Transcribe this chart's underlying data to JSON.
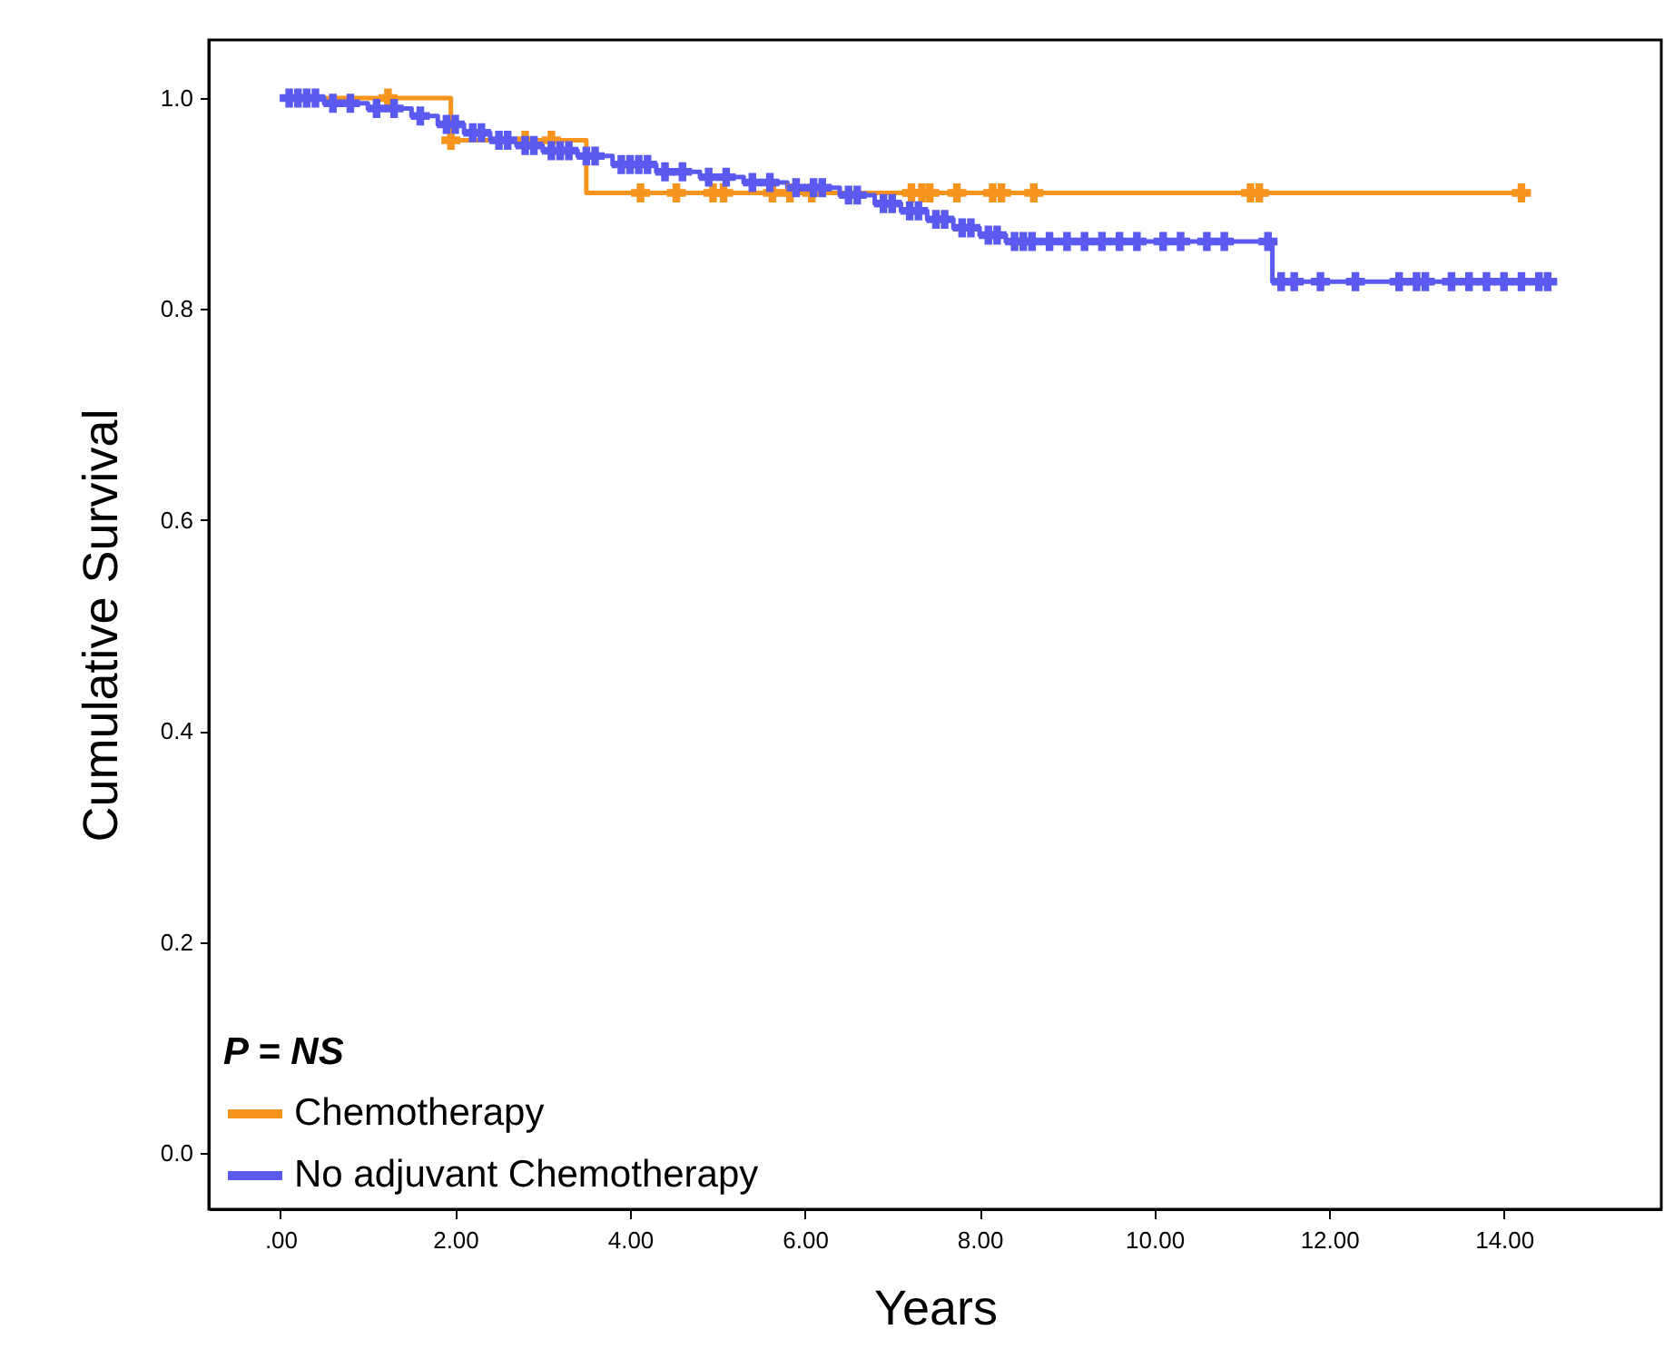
{
  "chart_data": {
    "type": "step",
    "xlabel": "Years",
    "ylabel": "Cumulative Survival",
    "legend_title": "P = NS",
    "legend": "bottom left",
    "grid": false,
    "xlim": [
      -0.82,
      15.8
    ],
    "ylim": [
      -0.053,
      1.055
    ],
    "xticks": [
      {
        "value": 0,
        "label": ".00"
      },
      {
        "value": 2,
        "label": "2.00"
      },
      {
        "value": 4,
        "label": "4.00"
      },
      {
        "value": 6,
        "label": "6.00"
      },
      {
        "value": 8,
        "label": "8.00"
      },
      {
        "value": 10,
        "label": "10.00"
      },
      {
        "value": 12,
        "label": "12.00"
      },
      {
        "value": 14,
        "label": "14.00"
      }
    ],
    "yticks": [
      {
        "value": 0,
        "label": "0.0"
      },
      0.2,
      0.4,
      0.6,
      0.8,
      {
        "value": 1,
        "label": "1.0"
      }
    ],
    "series": [
      {
        "name": "Chemotherapy",
        "color": "#f7941e",
        "x": [
          0,
          1.95,
          3.5,
          14.2
        ],
        "values": [
          1.0,
          0.96,
          0.91,
          0.91
        ]
      },
      {
        "name": "No adjuvant Chemotherapy",
        "color": "#5a5af0",
        "x": [
          0,
          0.5,
          1.0,
          1.5,
          1.8,
          2.1,
          2.4,
          2.7,
          3.0,
          3.4,
          3.8,
          4.3,
          4.8,
          5.3,
          5.8,
          6.4,
          6.8,
          7.1,
          7.4,
          7.7,
          8.0,
          8.3,
          11.35,
          14.55
        ],
        "values": [
          1.0,
          0.995,
          0.99,
          0.983,
          0.975,
          0.967,
          0.96,
          0.955,
          0.95,
          0.945,
          0.937,
          0.93,
          0.925,
          0.92,
          0.915,
          0.908,
          0.9,
          0.893,
          0.885,
          0.877,
          0.87,
          0.864,
          0.826,
          0.826
        ]
      },
      {
        "color": "#f7941e",
        "type": "scatter",
        "marker": "cross",
        "x": [
          1.23,
          1.95,
          2.8,
          3.1,
          4.12,
          4.53,
          4.95,
          5.07,
          5.63,
          5.83,
          6.08,
          7.22,
          7.34,
          7.43,
          7.74,
          8.15,
          8.25,
          8.62,
          11.1,
          11.2,
          14.2
        ],
        "values": [
          1.0,
          0.96,
          0.96,
          0.96,
          0.91,
          0.91,
          0.91,
          0.91,
          0.91,
          0.91,
          0.91,
          0.91,
          0.91,
          0.91,
          0.91,
          0.91,
          0.91,
          0.91,
          0.91,
          0.91,
          0.91
        ]
      },
      {
        "color": "#5a5af0",
        "type": "scatter",
        "marker": "cross",
        "x": [
          0.1,
          0.2,
          0.3,
          0.4,
          0.6,
          0.8,
          1.1,
          1.3,
          1.6,
          1.9,
          2.0,
          2.2,
          2.3,
          2.5,
          2.6,
          2.8,
          2.9,
          3.1,
          3.2,
          3.3,
          3.5,
          3.6,
          3.9,
          4.0,
          4.1,
          4.2,
          4.4,
          4.6,
          4.9,
          5.1,
          5.4,
          5.6,
          5.9,
          6.1,
          6.2,
          6.5,
          6.6,
          6.9,
          7.0,
          7.2,
          7.3,
          7.5,
          7.6,
          7.8,
          7.9,
          8.1,
          8.2,
          8.4,
          8.5,
          8.6,
          8.8,
          9.0,
          9.2,
          9.4,
          9.6,
          9.8,
          10.1,
          10.3,
          10.6,
          10.8,
          11.3,
          11.45,
          11.6,
          11.9,
          12.3,
          12.8,
          13.0,
          13.1,
          13.4,
          13.6,
          13.8,
          14.0,
          14.2,
          14.4,
          14.5
        ],
        "values": [
          1.0,
          1.0,
          1.0,
          1.0,
          0.995,
          0.995,
          0.99,
          0.99,
          0.983,
          0.975,
          0.975,
          0.967,
          0.967,
          0.96,
          0.96,
          0.955,
          0.955,
          0.95,
          0.95,
          0.95,
          0.945,
          0.945,
          0.937,
          0.937,
          0.937,
          0.937,
          0.93,
          0.93,
          0.925,
          0.925,
          0.92,
          0.92,
          0.915,
          0.915,
          0.915,
          0.908,
          0.908,
          0.9,
          0.9,
          0.893,
          0.893,
          0.885,
          0.885,
          0.877,
          0.877,
          0.87,
          0.87,
          0.864,
          0.864,
          0.864,
          0.864,
          0.864,
          0.864,
          0.864,
          0.864,
          0.864,
          0.864,
          0.864,
          0.864,
          0.864,
          0.864,
          0.826,
          0.826,
          0.826,
          0.826,
          0.826,
          0.826,
          0.826,
          0.826,
          0.826,
          0.826,
          0.826,
          0.826,
          0.826,
          0.826
        ]
      }
    ]
  }
}
